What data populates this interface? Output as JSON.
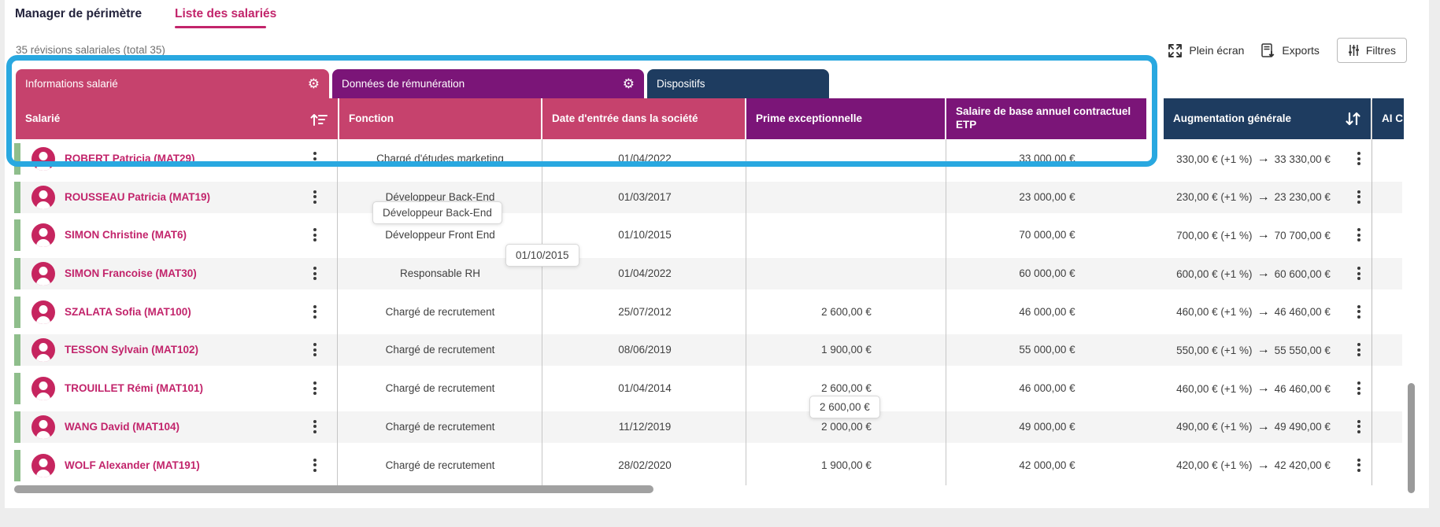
{
  "tabs": [
    {
      "label": "Manager de périmètre",
      "active": false
    },
    {
      "label": "Liste des salariés",
      "active": true
    }
  ],
  "summary": "35 révisions salariales (total 35)",
  "toolbar": {
    "fullscreen_label": "Plein écran",
    "exports_label": "Exports",
    "filters_label": "Filtres"
  },
  "icons": {
    "gear": "⚙",
    "arrow_right": "→"
  },
  "colors": {
    "pink": "#c6426d",
    "purple": "#7b1578",
    "navy": "#1e3c60",
    "accent_pink": "#c2246b",
    "highlight_cyan": "#29a8e0",
    "green_bar": "#8fbe8c"
  },
  "table": {
    "groups": [
      {
        "label": "Informations salarié",
        "has_gear": true
      },
      {
        "label": "Données de rémunération",
        "has_gear": true
      },
      {
        "label": "Dispositifs",
        "has_gear": false
      }
    ],
    "columns": {
      "salarie": "Salarié",
      "fonction": "Fonction",
      "date": "Date d'entrée dans la société",
      "prime": "Prime exceptionnelle",
      "salaire": "Salaire de base annuel contractuel ETP",
      "augmentation": "Augmentation générale",
      "ai": "AI C"
    },
    "rows": [
      {
        "name": "ROBERT Patricia (MAT29)",
        "fonction": "Chargé d'études marketing",
        "date": "01/04/2022",
        "prime": "",
        "salaire": "33 000,00 €",
        "aug": "330,00 € (+1 %)",
        "aug_total": "33 330,00 €"
      },
      {
        "name": "ROUSSEAU Patricia (MAT19)",
        "fonction": "Développeur Back-End",
        "date": "01/03/2017",
        "prime": "",
        "salaire": "23 000,00 €",
        "aug": "230,00 € (+1 %)",
        "aug_total": "23 230,00 €"
      },
      {
        "name": "SIMON Christine (MAT6)",
        "fonction": "Développeur Front End",
        "date": "01/10/2015",
        "prime": "",
        "salaire": "70 000,00 €",
        "aug": "700,00 € (+1 %)",
        "aug_total": "70 700,00 €"
      },
      {
        "name": "SIMON Francoise (MAT30)",
        "fonction": "Responsable RH",
        "date": "01/04/2022",
        "prime": "",
        "salaire": "60 000,00 €",
        "aug": "600,00 € (+1 %)",
        "aug_total": "60 600,00 €"
      },
      {
        "name": "SZALATA Sofia (MAT100)",
        "fonction": "Chargé de recrutement",
        "date": "25/07/2012",
        "prime": "2 600,00 €",
        "salaire": "46 000,00 €",
        "aug": "460,00 € (+1 %)",
        "aug_total": "46 460,00 €"
      },
      {
        "name": "TESSON Sylvain (MAT102)",
        "fonction": "Chargé de recrutement",
        "date": "08/06/2019",
        "prime": "1 900,00 €",
        "salaire": "55 000,00 €",
        "aug": "550,00 € (+1 %)",
        "aug_total": "55 550,00 €"
      },
      {
        "name": "TROUILLET Rémi (MAT101)",
        "fonction": "Chargé de recrutement",
        "date": "01/04/2014",
        "prime": "2 600,00 €",
        "salaire": "46 000,00 €",
        "aug": "460,00 € (+1 %)",
        "aug_total": "46 460,00 €"
      },
      {
        "name": "WANG David (MAT104)",
        "fonction": "Chargé de recrutement",
        "date": "11/12/2019",
        "prime": "2 000,00 €",
        "salaire": "49 000,00 €",
        "aug": "490,00 € (+1 %)",
        "aug_total": "49 490,00 €"
      },
      {
        "name": "WOLF Alexander (MAT191)",
        "fonction": "Chargé de recrutement",
        "date": "28/02/2020",
        "prime": "1 900,00 €",
        "salaire": "42 000,00 €",
        "aug": "420,00 € (+1 %)",
        "aug_total": "42 420,00 €"
      }
    ]
  },
  "tooltips": {
    "fonction": "Développeur Back-End",
    "date": "01/10/2015",
    "prime": "2 600,00 €"
  }
}
